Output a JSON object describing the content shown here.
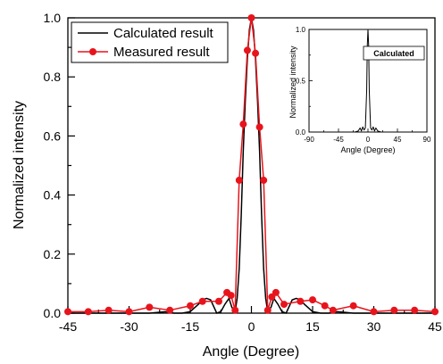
{
  "chart_data": [
    {
      "type": "line",
      "xlabel": "Angle (Degree)",
      "ylabel": "Normalized intensity",
      "xlim": [
        -45,
        45
      ],
      "ylim": [
        0,
        1.0
      ],
      "x_ticks": [
        "-45",
        "-30",
        "-15",
        "0",
        "15",
        "30",
        "45"
      ],
      "x_tick_values": [
        -45,
        -30,
        -15,
        0,
        15,
        30,
        45
      ],
      "y_ticks": [
        "0.0",
        "0.2",
        "0.4",
        "0.6",
        "0.8",
        "1.0"
      ],
      "y_tick_values": [
        0.0,
        0.2,
        0.4,
        0.6,
        0.8,
        1.0
      ],
      "legend_position": "top-left",
      "series": [
        {
          "name": "Calculated result",
          "color": "#000000",
          "marker": "none",
          "x": [
            -45,
            -40,
            -35,
            -30,
            -25,
            -21,
            -19,
            -17,
            -15,
            -13,
            -12,
            -11,
            -10,
            -9.5,
            -8.5,
            -7.5,
            -6.5,
            -5.5,
            -4.8,
            -4,
            -3.5,
            -3,
            -2.5,
            -2,
            -1.5,
            -1,
            -0.5,
            0,
            0.5,
            1,
            1.5,
            2,
            2.5,
            3,
            3.5,
            4,
            4.8,
            5.5,
            6.5,
            7.5,
            8.5,
            9.5,
            10,
            11,
            12,
            13,
            15,
            17,
            19,
            21,
            25,
            30,
            35,
            40,
            45
          ],
          "y": [
            0.0,
            0.0,
            0.0,
            0.0,
            0.0,
            0.005,
            0.0,
            0.0,
            0.005,
            0.03,
            0.045,
            0.05,
            0.045,
            0.03,
            0.0,
            0.005,
            0.03,
            0.05,
            0.02,
            0.005,
            0.05,
            0.15,
            0.33,
            0.55,
            0.72,
            0.86,
            0.96,
            1.0,
            0.96,
            0.86,
            0.72,
            0.55,
            0.33,
            0.15,
            0.05,
            0.005,
            0.02,
            0.05,
            0.03,
            0.005,
            0.0,
            0.03,
            0.045,
            0.05,
            0.045,
            0.03,
            0.005,
            0.0,
            0.0,
            0.005,
            0.0,
            0.0,
            0.0,
            0.0,
            0.0
          ]
        },
        {
          "name": "Measured result",
          "color": "#e8141c",
          "marker": "circle",
          "x": [
            -45,
            -40,
            -35,
            -30,
            -25,
            -20,
            -15,
            -12,
            -8,
            -6,
            -5,
            -4,
            -3,
            -2,
            -1,
            0,
            1,
            2,
            3,
            4,
            5,
            6,
            8,
            12,
            15,
            18,
            20,
            25,
            30,
            35,
            40,
            45
          ],
          "y": [
            0.005,
            0.005,
            0.01,
            0.005,
            0.02,
            0.01,
            0.025,
            0.04,
            0.04,
            0.07,
            0.06,
            0.01,
            0.45,
            0.64,
            0.89,
            1.0,
            0.88,
            0.63,
            0.45,
            0.01,
            0.055,
            0.07,
            0.03,
            0.04,
            0.045,
            0.025,
            0.01,
            0.025,
            0.005,
            0.01,
            0.01,
            0.005
          ]
        }
      ]
    },
    {
      "type": "line",
      "xlabel": "Angle (Degree)",
      "ylabel": "Normalized intensity",
      "xlim": [
        -90,
        90
      ],
      "ylim": [
        0,
        1.0
      ],
      "x_ticks": [
        "-90",
        "-45",
        "0",
        "45",
        "90"
      ],
      "x_tick_values": [
        -90,
        -45,
        0,
        45,
        90
      ],
      "y_ticks": [
        "0.0",
        "0.5",
        "1.0"
      ],
      "y_tick_values": [
        0.0,
        0.5,
        1.0
      ],
      "legend_position": "top-right",
      "series": [
        {
          "name": "Calculated",
          "color": "#000000",
          "marker": "none",
          "x": [
            -90,
            -20,
            -15,
            -12,
            -10,
            -8,
            -6,
            -4,
            -2,
            -1,
            0,
            1,
            2,
            4,
            6,
            8,
            10,
            12,
            15,
            20,
            90
          ],
          "y": [
            0.0,
            0.0,
            0.01,
            0.04,
            0.01,
            0.05,
            0.02,
            0.04,
            0.4,
            0.85,
            1.0,
            0.85,
            0.4,
            0.04,
            0.02,
            0.05,
            0.01,
            0.04,
            0.01,
            0.0,
            0.0
          ]
        }
      ]
    }
  ]
}
